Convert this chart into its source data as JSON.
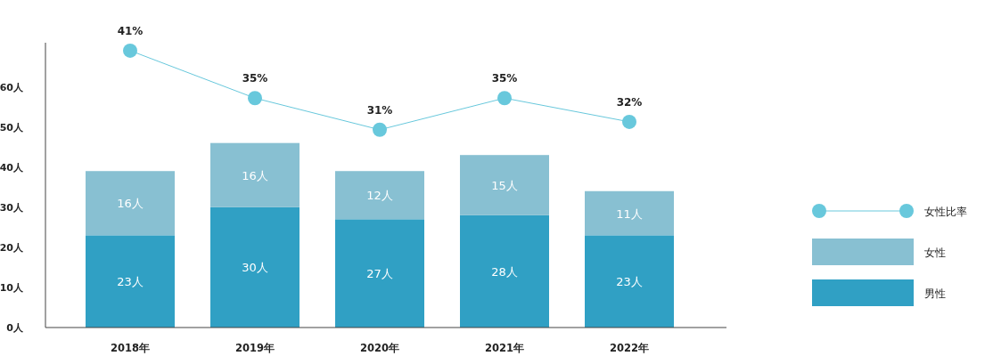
{
  "chart_data": {
    "type": "bar",
    "stacked": true,
    "categories": [
      "2018年",
      "2019年",
      "2020年",
      "2021年",
      "2022年"
    ],
    "ylim": [
      0,
      71
    ],
    "yticks": [
      {
        "value": 0,
        "label": "0人"
      },
      {
        "value": 10,
        "label": "10人"
      },
      {
        "value": 20,
        "label": "20人"
      },
      {
        "value": 30,
        "label": "30人"
      },
      {
        "value": 40,
        "label": "40人"
      },
      {
        "value": 50,
        "label": "50人"
      },
      {
        "value": 60,
        "label": "60人"
      }
    ],
    "y2lim": [
      6,
      42
    ],
    "grid": false,
    "legend": "right",
    "series": [
      {
        "name": "男性",
        "color": "#30a0c4",
        "values": [
          23,
          30,
          27,
          28,
          23
        ],
        "value_labels": [
          "23人",
          "30人",
          "27人",
          "28人",
          "23人"
        ]
      },
      {
        "name": "女性",
        "color": "#88c0d2",
        "values": [
          16,
          16,
          12,
          15,
          11
        ],
        "value_labels": [
          "16人",
          "16人",
          "12人",
          "15人",
          "11人"
        ]
      },
      {
        "name": "女性比率",
        "type": "line",
        "axis": "y2",
        "color": "#68c8dc",
        "marker": "circle",
        "line_style": "solid",
        "values": [
          41,
          35,
          31,
          35,
          32
        ],
        "value_labels": [
          "41%",
          "35%",
          "31%",
          "35%",
          "32%"
        ]
      }
    ]
  }
}
